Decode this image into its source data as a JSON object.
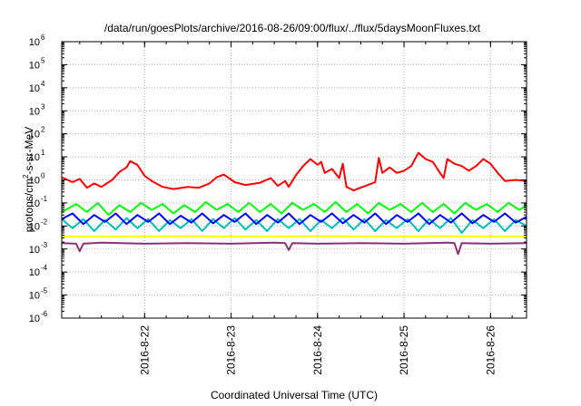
{
  "chart_data": {
    "type": "line",
    "title": "/data/run/goesPlots/archive/2016-08-26/09:00/flux/../flux/5daysMoonFluxes.txt",
    "xlabel": "Coordinated Universal Time (UTC)",
    "ylabel": {
      "base": "protons/cm",
      "sup": "2",
      "rest": "-s-sr-MeV"
    },
    "yscale": "log",
    "ylim_exp": [
      -6,
      6
    ],
    "xlim": [
      "2016-08-21T01:00",
      "2016-08-26T10:00"
    ],
    "grid": true,
    "x_ticks": [
      "2016-08-22T00:00",
      "2016-08-23T00:00",
      "2016-08-24T00:00",
      "2016-08-25T00:00",
      "2016-08-26T00:00"
    ],
    "x_tick_labels": [
      "2016-8-22",
      "2016-8-23",
      "2016-8-24",
      "2016-8-25",
      "2016-8-26"
    ],
    "series": [
      {
        "color": "#ff0000",
        "points": [
          [
            "2016-08-21T01:00",
            1.3
          ],
          [
            "2016-08-21T04:00",
            0.8
          ],
          [
            "2016-08-21T06:00",
            1.1
          ],
          [
            "2016-08-21T08:00",
            0.45
          ],
          [
            "2016-08-21T10:00",
            0.7
          ],
          [
            "2016-08-21T12:00",
            0.5
          ],
          [
            "2016-08-21T15:00",
            1.0
          ],
          [
            "2016-08-21T17:00",
            2.2
          ],
          [
            "2016-08-21T19:00",
            3.5
          ],
          [
            "2016-08-21T20:00",
            6.5
          ],
          [
            "2016-08-21T22:00",
            4.5
          ],
          [
            "2016-08-22T00:00",
            1.5
          ],
          [
            "2016-08-22T02:00",
            0.9
          ],
          [
            "2016-08-22T05:00",
            0.5
          ],
          [
            "2016-08-22T08:00",
            0.4
          ],
          [
            "2016-08-22T12:00",
            0.5
          ],
          [
            "2016-08-22T15:00",
            0.45
          ],
          [
            "2016-08-22T18:00",
            0.7
          ],
          [
            "2016-08-22T20:00",
            1.3
          ],
          [
            "2016-08-22T22:00",
            1.7
          ],
          [
            "2016-08-23T01:00",
            0.8
          ],
          [
            "2016-08-23T04:00",
            0.6
          ],
          [
            "2016-08-23T08:00",
            0.75
          ],
          [
            "2016-08-23T11:00",
            1.2
          ],
          [
            "2016-08-23T13:00",
            0.55
          ],
          [
            "2016-08-23T15:00",
            0.9
          ],
          [
            "2016-08-23T16:00",
            0.5
          ],
          [
            "2016-08-23T18:00",
            1.6
          ],
          [
            "2016-08-23T20:00",
            4.0
          ],
          [
            "2016-08-23T22:00",
            8.0
          ],
          [
            "2016-08-24T00:00",
            4.5
          ],
          [
            "2016-08-24T01:00",
            6.0
          ],
          [
            "2016-08-24T02:00",
            2.0
          ],
          [
            "2016-08-24T04:00",
            3.0
          ],
          [
            "2016-08-24T06:00",
            1.2
          ],
          [
            "2016-08-24T07:00",
            5.0
          ],
          [
            "2016-08-24T08:00",
            0.5
          ],
          [
            "2016-08-24T10:00",
            0.35
          ],
          [
            "2016-08-24T14:00",
            0.6
          ],
          [
            "2016-08-24T16:00",
            0.8
          ],
          [
            "2016-08-24T17:00",
            9.0
          ],
          [
            "2016-08-24T18:00",
            2.0
          ],
          [
            "2016-08-24T20:00",
            3.5
          ],
          [
            "2016-08-24T22:00",
            2.0
          ],
          [
            "2016-08-25T00:00",
            2.5
          ],
          [
            "2016-08-25T02:00",
            4.0
          ],
          [
            "2016-08-25T04:00",
            15.0
          ],
          [
            "2016-08-25T06:00",
            8.0
          ],
          [
            "2016-08-25T08:00",
            6.0
          ],
          [
            "2016-08-25T10:00",
            2.0
          ],
          [
            "2016-08-25T11:00",
            1.2
          ],
          [
            "2016-08-25T12:00",
            8.0
          ],
          [
            "2016-08-25T14:00",
            5.0
          ],
          [
            "2016-08-25T16:00",
            4.0
          ],
          [
            "2016-08-25T18:00",
            2.5
          ],
          [
            "2016-08-25T20:00",
            4.0
          ],
          [
            "2016-08-25T22:00",
            8.0
          ],
          [
            "2016-08-26T00:00",
            5.0
          ],
          [
            "2016-08-26T02:00",
            2.0
          ],
          [
            "2016-08-26T04:00",
            0.9
          ],
          [
            "2016-08-26T07:00",
            1.0
          ],
          [
            "2016-08-26T10:00",
            0.9
          ]
        ]
      },
      {
        "color": "#00ff00",
        "points": [
          [
            "2016-08-21T01:00",
            0.04
          ],
          [
            "2016-08-21T05:00",
            0.09
          ],
          [
            "2016-08-21T08:00",
            0.04
          ],
          [
            "2016-08-21T11:00",
            0.1
          ],
          [
            "2016-08-21T14:00",
            0.03
          ],
          [
            "2016-08-21T17:00",
            0.08
          ],
          [
            "2016-08-21T20:00",
            0.04
          ],
          [
            "2016-08-21T23:00",
            0.1
          ],
          [
            "2016-08-22T02:00",
            0.05
          ],
          [
            "2016-08-22T05:00",
            0.09
          ],
          [
            "2016-08-22T08:00",
            0.035
          ],
          [
            "2016-08-22T11:00",
            0.08
          ],
          [
            "2016-08-22T14:00",
            0.04
          ],
          [
            "2016-08-22T17:00",
            0.11
          ],
          [
            "2016-08-22T20:00",
            0.05
          ],
          [
            "2016-08-22T23:00",
            0.09
          ],
          [
            "2016-08-23T02:00",
            0.04
          ],
          [
            "2016-08-23T05:00",
            0.1
          ],
          [
            "2016-08-23T08:00",
            0.04
          ],
          [
            "2016-08-23T11:00",
            0.09
          ],
          [
            "2016-08-23T14:00",
            0.035
          ],
          [
            "2016-08-23T17:00",
            0.1
          ],
          [
            "2016-08-23T20:00",
            0.05
          ],
          [
            "2016-08-23T23:00",
            0.09
          ],
          [
            "2016-08-24T02:00",
            0.04
          ],
          [
            "2016-08-24T05:00",
            0.11
          ],
          [
            "2016-08-24T08:00",
            0.04
          ],
          [
            "2016-08-24T11:00",
            0.09
          ],
          [
            "2016-08-24T14:00",
            0.035
          ],
          [
            "2016-08-24T17:00",
            0.1
          ],
          [
            "2016-08-24T20:00",
            0.05
          ],
          [
            "2016-08-24T23:00",
            0.09
          ],
          [
            "2016-08-25T02:00",
            0.04
          ],
          [
            "2016-08-25T05:00",
            0.1
          ],
          [
            "2016-08-25T08:00",
            0.04
          ],
          [
            "2016-08-25T11:00",
            0.09
          ],
          [
            "2016-08-25T14:00",
            0.035
          ],
          [
            "2016-08-25T17:00",
            0.1
          ],
          [
            "2016-08-25T20:00",
            0.05
          ],
          [
            "2016-08-25T23:00",
            0.09
          ],
          [
            "2016-08-26T02:00",
            0.04
          ],
          [
            "2016-08-26T05:00",
            0.1
          ],
          [
            "2016-08-26T08:00",
            0.05
          ],
          [
            "2016-08-26T10:00",
            0.08
          ]
        ]
      },
      {
        "color": "#00bfbf",
        "points": [
          [
            "2016-08-21T01:00",
            0.02
          ],
          [
            "2016-08-21T04:00",
            0.008
          ],
          [
            "2016-08-21T07:00",
            0.02
          ],
          [
            "2016-08-21T10:00",
            0.006
          ],
          [
            "2016-08-21T13:00",
            0.018
          ],
          [
            "2016-08-21T16:00",
            0.007
          ],
          [
            "2016-08-21T19:00",
            0.022
          ],
          [
            "2016-08-21T22:00",
            0.008
          ],
          [
            "2016-08-22T01:00",
            0.02
          ],
          [
            "2016-08-22T04:00",
            0.006
          ],
          [
            "2016-08-22T07:00",
            0.018
          ],
          [
            "2016-08-22T10:00",
            0.008
          ],
          [
            "2016-08-22T13:00",
            0.02
          ],
          [
            "2016-08-22T16:00",
            0.006
          ],
          [
            "2016-08-22T19:00",
            0.02
          ],
          [
            "2016-08-22T22:00",
            0.008
          ],
          [
            "2016-08-23T01:00",
            0.022
          ],
          [
            "2016-08-23T04:00",
            0.007
          ],
          [
            "2016-08-23T07:00",
            0.018
          ],
          [
            "2016-08-23T10:00",
            0.006
          ],
          [
            "2016-08-23T13:00",
            0.02
          ],
          [
            "2016-08-23T16:00",
            0.008
          ],
          [
            "2016-08-23T19:00",
            0.02
          ],
          [
            "2016-08-23T22:00",
            0.006
          ],
          [
            "2016-08-24T01:00",
            0.018
          ],
          [
            "2016-08-24T04:00",
            0.008
          ],
          [
            "2016-08-24T07:00",
            0.022
          ],
          [
            "2016-08-24T10:00",
            0.007
          ],
          [
            "2016-08-24T13:00",
            0.02
          ],
          [
            "2016-08-24T16:00",
            0.006
          ],
          [
            "2016-08-24T19:00",
            0.018
          ],
          [
            "2016-08-24T22:00",
            0.008
          ],
          [
            "2016-08-25T01:00",
            0.02
          ],
          [
            "2016-08-25T04:00",
            0.006
          ],
          [
            "2016-08-25T07:00",
            0.02
          ],
          [
            "2016-08-25T10:00",
            0.008
          ],
          [
            "2016-08-25T13:00",
            0.022
          ],
          [
            "2016-08-25T16:00",
            0.005
          ],
          [
            "2016-08-25T19:00",
            0.018
          ],
          [
            "2016-08-25T22:00",
            0.008
          ],
          [
            "2016-08-26T01:00",
            0.02
          ],
          [
            "2016-08-26T04:00",
            0.006
          ],
          [
            "2016-08-26T07:00",
            0.018
          ],
          [
            "2016-08-26T10:00",
            0.01
          ]
        ]
      },
      {
        "color": "#0000ff",
        "points": [
          [
            "2016-08-21T01:00",
            0.02
          ],
          [
            "2016-08-21T04:00",
            0.035
          ],
          [
            "2016-08-21T07:00",
            0.012
          ],
          [
            "2016-08-21T10:00",
            0.03
          ],
          [
            "2016-08-21T13:00",
            0.015
          ],
          [
            "2016-08-21T16:00",
            0.035
          ],
          [
            "2016-08-21T19:00",
            0.012
          ],
          [
            "2016-08-21T22:00",
            0.03
          ],
          [
            "2016-08-22T01:00",
            0.015
          ],
          [
            "2016-08-22T04:00",
            0.035
          ],
          [
            "2016-08-22T07:00",
            0.012
          ],
          [
            "2016-08-22T10:00",
            0.028
          ],
          [
            "2016-08-22T13:00",
            0.014
          ],
          [
            "2016-08-22T16:00",
            0.035
          ],
          [
            "2016-08-22T19:00",
            0.013
          ],
          [
            "2016-08-22T22:00",
            0.03
          ],
          [
            "2016-08-23T01:00",
            0.015
          ],
          [
            "2016-08-23T04:00",
            0.035
          ],
          [
            "2016-08-23T07:00",
            0.012
          ],
          [
            "2016-08-23T10:00",
            0.03
          ],
          [
            "2016-08-23T13:00",
            0.014
          ],
          [
            "2016-08-23T16:00",
            0.035
          ],
          [
            "2016-08-23T19:00",
            0.012
          ],
          [
            "2016-08-23T22:00",
            0.03
          ],
          [
            "2016-08-24T01:00",
            0.015
          ],
          [
            "2016-08-24T04:00",
            0.035
          ],
          [
            "2016-08-24T07:00",
            0.013
          ],
          [
            "2016-08-24T10:00",
            0.03
          ],
          [
            "2016-08-24T13:00",
            0.014
          ],
          [
            "2016-08-24T16:00",
            0.035
          ],
          [
            "2016-08-24T19:00",
            0.012
          ],
          [
            "2016-08-24T22:00",
            0.03
          ],
          [
            "2016-08-25T01:00",
            0.015
          ],
          [
            "2016-08-25T04:00",
            0.035
          ],
          [
            "2016-08-25T07:00",
            0.012
          ],
          [
            "2016-08-25T10:00",
            0.03
          ],
          [
            "2016-08-25T13:00",
            0.014
          ],
          [
            "2016-08-25T16:00",
            0.035
          ],
          [
            "2016-08-25T19:00",
            0.013
          ],
          [
            "2016-08-25T22:00",
            0.03
          ],
          [
            "2016-08-26T01:00",
            0.015
          ],
          [
            "2016-08-26T04:00",
            0.035
          ],
          [
            "2016-08-26T07:00",
            0.014
          ],
          [
            "2016-08-26T10:00",
            0.025
          ]
        ]
      },
      {
        "color": "#ffff00",
        "points": [
          [
            "2016-08-21T01:00",
            0.0035
          ],
          [
            "2016-08-21T12:00",
            0.0035
          ],
          [
            "2016-08-22T00:00",
            0.0035
          ],
          [
            "2016-08-22T12:00",
            0.0036
          ],
          [
            "2016-08-23T00:00",
            0.0035
          ],
          [
            "2016-08-23T12:00",
            0.0035
          ],
          [
            "2016-08-24T00:00",
            0.0036
          ],
          [
            "2016-08-24T12:00",
            0.0035
          ],
          [
            "2016-08-25T00:00",
            0.0035
          ],
          [
            "2016-08-25T12:00",
            0.0036
          ],
          [
            "2016-08-26T00:00",
            0.0035
          ],
          [
            "2016-08-26T10:00",
            0.0035
          ]
        ]
      },
      {
        "color": "#8b2f7a",
        "points": [
          [
            "2016-08-21T01:00",
            0.0018
          ],
          [
            "2016-08-21T05:00",
            0.0017
          ],
          [
            "2016-08-21T06:00",
            0.0008
          ],
          [
            "2016-08-21T07:00",
            0.0017
          ],
          [
            "2016-08-21T12:00",
            0.0019
          ],
          [
            "2016-08-22T00:00",
            0.0017
          ],
          [
            "2016-08-22T12:00",
            0.0018
          ],
          [
            "2016-08-23T00:00",
            0.0017
          ],
          [
            "2016-08-23T12:00",
            0.0019
          ],
          [
            "2016-08-23T15:00",
            0.0018
          ],
          [
            "2016-08-23T16:00",
            0.0009
          ],
          [
            "2016-08-23T17:00",
            0.0018
          ],
          [
            "2016-08-24T00:00",
            0.0017
          ],
          [
            "2016-08-24T12:00",
            0.0018
          ],
          [
            "2016-08-25T00:00",
            0.0017
          ],
          [
            "2016-08-25T12:00",
            0.0019
          ],
          [
            "2016-08-25T14:00",
            0.0018
          ],
          [
            "2016-08-25T15:00",
            0.0006
          ],
          [
            "2016-08-25T16:00",
            0.0018
          ],
          [
            "2016-08-26T00:00",
            0.0017
          ],
          [
            "2016-08-26T10:00",
            0.0018
          ]
        ]
      }
    ]
  }
}
